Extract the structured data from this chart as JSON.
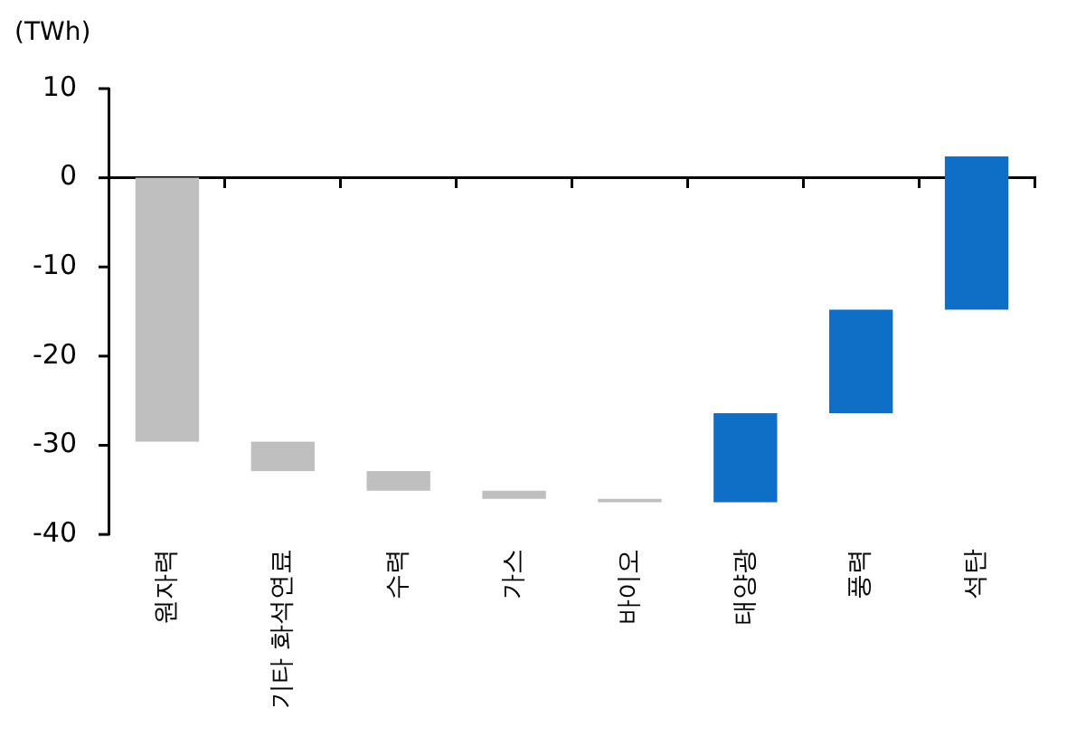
{
  "chart_data": {
    "type": "bar",
    "ylabel": "(TWh)",
    "categories": [
      "원자력",
      "기타 화석연료",
      "수력",
      "가스",
      "바이오",
      "태양광",
      "풍력",
      "석탄"
    ],
    "values": [
      -29.6,
      -3.3,
      -2.2,
      -0.9,
      -0.4,
      10.0,
      11.6,
      17.2
    ],
    "base": [
      0,
      -29.6,
      -32.9,
      -35.1,
      -36.0,
      -36.4,
      -26.4,
      -14.8
    ],
    "colors": [
      "#bfbfbf",
      "#bfbfbf",
      "#bfbfbf",
      "#bfbfbf",
      "#bfbfbf",
      "#0f6fc6",
      "#0f6fc6",
      "#0f6fc6"
    ],
    "ylim": [
      -40,
      10
    ],
    "yticks": [
      -40,
      -30,
      -20,
      -10,
      0,
      10
    ],
    "legend": false
  }
}
